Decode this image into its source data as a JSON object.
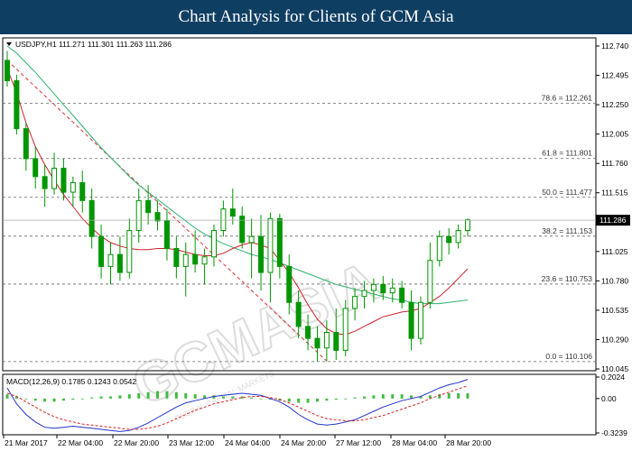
{
  "header": {
    "title": "Chart Analysis for Clients of GCM Asia"
  },
  "symbol_info": "USDJPY,H1  111.271 111.301 111.263 111.286",
  "macd_info": "MACD(12,26,9) 0.1785 0.1243 0.0542",
  "watermark": {
    "main": "GCMASIA",
    "sub": "GLOBAL CAPITAL MARKETS"
  },
  "colors": {
    "header_bg": "#0f3e63",
    "candle": "#009600",
    "ma_fast": "#d0202c",
    "ma_slow": "#2db36a",
    "macd_line": "#2233cc",
    "signal_line": "#dd2222",
    "histogram": "#44bb44"
  },
  "chart_data": {
    "type": "candlestick",
    "symbol": "USDJPY",
    "timeframe": "H1",
    "price_axis": {
      "ticks": [
        "112.740",
        "112.495",
        "112.250",
        "112.005",
        "111.760",
        "111.515",
        "111.270",
        "111.025",
        "110.780",
        "110.535",
        "110.290",
        "110.045"
      ],
      "range": [
        110.045,
        112.74
      ]
    },
    "current_price": "111.286",
    "fibonacci": [
      {
        "label": "78.6 = 112.261",
        "value": 112.261
      },
      {
        "label": "61.8 = 111.801",
        "value": 111.801
      },
      {
        "label": "50.0 = 111.477",
        "value": 111.477
      },
      {
        "label": "38.2 = 111.153",
        "value": 111.153
      },
      {
        "label": "23.6 = 110.753",
        "value": 110.753
      },
      {
        "label": "0.0 = 110.106",
        "value": 110.106
      }
    ],
    "time_labels": [
      "21 Mar 2017",
      "22 Mar 04:00",
      "22 Mar 20:00",
      "23 Mar 12:00",
      "24 Mar 04:00",
      "24 Mar 20:00",
      "27 Mar 12:00",
      "28 Mar 04:00",
      "28 Mar 20:00"
    ],
    "candles": [
      {
        "o": 112.62,
        "h": 112.7,
        "l": 112.4,
        "c": 112.45
      },
      {
        "o": 112.45,
        "h": 112.5,
        "l": 112.0,
        "c": 112.05
      },
      {
        "o": 112.05,
        "h": 112.1,
        "l": 111.7,
        "c": 111.8
      },
      {
        "o": 111.8,
        "h": 111.9,
        "l": 111.55,
        "c": 111.65
      },
      {
        "o": 111.65,
        "h": 111.75,
        "l": 111.4,
        "c": 111.55
      },
      {
        "o": 111.55,
        "h": 111.85,
        "l": 111.5,
        "c": 111.72
      },
      {
        "o": 111.72,
        "h": 111.8,
        "l": 111.45,
        "c": 111.52
      },
      {
        "o": 111.52,
        "h": 111.65,
        "l": 111.4,
        "c": 111.6
      },
      {
        "o": 111.6,
        "h": 111.7,
        "l": 111.35,
        "c": 111.45
      },
      {
        "o": 111.45,
        "h": 111.55,
        "l": 111.05,
        "c": 111.15
      },
      {
        "o": 111.15,
        "h": 111.25,
        "l": 110.8,
        "c": 110.9
      },
      {
        "o": 110.9,
        "h": 111.1,
        "l": 110.75,
        "c": 111.0
      },
      {
        "o": 111.0,
        "h": 111.15,
        "l": 110.78,
        "c": 110.85
      },
      {
        "o": 110.85,
        "h": 111.3,
        "l": 110.8,
        "c": 111.2
      },
      {
        "o": 111.2,
        "h": 111.55,
        "l": 111.1,
        "c": 111.45
      },
      {
        "o": 111.45,
        "h": 111.58,
        "l": 111.25,
        "c": 111.35
      },
      {
        "o": 111.35,
        "h": 111.45,
        "l": 111.2,
        "c": 111.28
      },
      {
        "o": 111.28,
        "h": 111.38,
        "l": 110.95,
        "c": 111.05
      },
      {
        "o": 111.05,
        "h": 111.15,
        "l": 110.8,
        "c": 110.9
      },
      {
        "o": 110.9,
        "h": 111.1,
        "l": 110.65,
        "c": 111.0
      },
      {
        "o": 111.0,
        "h": 111.2,
        "l": 110.85,
        "c": 110.92
      },
      {
        "o": 110.92,
        "h": 111.05,
        "l": 110.75,
        "c": 110.98
      },
      {
        "o": 110.98,
        "h": 111.25,
        "l": 110.9,
        "c": 111.2
      },
      {
        "o": 111.2,
        "h": 111.45,
        "l": 111.15,
        "c": 111.38
      },
      {
        "o": 111.38,
        "h": 111.55,
        "l": 111.25,
        "c": 111.32
      },
      {
        "o": 111.32,
        "h": 111.4,
        "l": 111.05,
        "c": 111.1
      },
      {
        "o": 111.1,
        "h": 111.3,
        "l": 110.8,
        "c": 111.15
      },
      {
        "o": 111.15,
        "h": 111.33,
        "l": 110.7,
        "c": 110.85
      },
      {
        "o": 110.85,
        "h": 111.35,
        "l": 110.6,
        "c": 111.3
      },
      {
        "o": 111.3,
        "h": 111.34,
        "l": 110.8,
        "c": 110.9
      },
      {
        "o": 110.9,
        "h": 111.0,
        "l": 110.5,
        "c": 110.6
      },
      {
        "o": 110.6,
        "h": 110.7,
        "l": 110.3,
        "c": 110.4
      },
      {
        "o": 110.4,
        "h": 110.5,
        "l": 110.2,
        "c": 110.3
      },
      {
        "o": 110.3,
        "h": 110.4,
        "l": 110.11,
        "c": 110.22
      },
      {
        "o": 110.22,
        "h": 110.45,
        "l": 110.11,
        "c": 110.35
      },
      {
        "o": 110.35,
        "h": 110.55,
        "l": 110.12,
        "c": 110.2
      },
      {
        "o": 110.2,
        "h": 110.62,
        "l": 110.15,
        "c": 110.55
      },
      {
        "o": 110.55,
        "h": 110.72,
        "l": 110.45,
        "c": 110.65
      },
      {
        "o": 110.65,
        "h": 110.78,
        "l": 110.55,
        "c": 110.7
      },
      {
        "o": 110.7,
        "h": 110.8,
        "l": 110.6,
        "c": 110.75
      },
      {
        "o": 110.75,
        "h": 110.82,
        "l": 110.62,
        "c": 110.68
      },
      {
        "o": 110.68,
        "h": 110.8,
        "l": 110.6,
        "c": 110.72
      },
      {
        "o": 110.72,
        "h": 110.78,
        "l": 110.55,
        "c": 110.6
      },
      {
        "o": 110.6,
        "h": 110.7,
        "l": 110.2,
        "c": 110.3
      },
      {
        "o": 110.3,
        "h": 110.65,
        "l": 110.25,
        "c": 110.6
      },
      {
        "o": 110.6,
        "h": 111.1,
        "l": 110.55,
        "c": 110.95
      },
      {
        "o": 110.95,
        "h": 111.2,
        "l": 110.9,
        "c": 111.15
      },
      {
        "o": 111.15,
        "h": 111.22,
        "l": 111.0,
        "c": 111.1
      },
      {
        "o": 111.1,
        "h": 111.25,
        "l": 111.05,
        "c": 111.2
      },
      {
        "o": 111.2,
        "h": 111.3,
        "l": 111.15,
        "c": 111.29
      }
    ],
    "ma_fast": [
      112.55,
      112.35,
      112.1,
      111.9,
      111.75,
      111.62,
      111.5,
      111.4,
      111.3,
      111.22,
      111.15,
      111.1,
      111.07,
      111.05,
      111.04,
      111.04,
      111.05,
      111.05,
      111.04,
      111.02,
      111.0,
      110.99,
      110.99,
      111.01,
      111.05,
      111.08,
      111.1,
      111.08,
      111.05,
      110.95,
      110.85,
      110.72,
      110.58,
      110.46,
      110.38,
      110.34,
      110.33,
      110.36,
      110.4,
      110.44,
      110.48,
      110.5,
      110.52,
      110.53,
      110.55,
      110.6,
      110.65,
      110.72,
      110.8,
      110.88
    ],
    "ma_slow": [
      112.74,
      112.68,
      112.6,
      112.52,
      112.43,
      112.34,
      112.25,
      112.16,
      112.07,
      111.98,
      111.89,
      111.81,
      111.73,
      111.65,
      111.58,
      111.52,
      111.46,
      111.4,
      111.34,
      111.28,
      111.22,
      111.17,
      111.13,
      111.09,
      111.06,
      111.03,
      111.0,
      110.98,
      110.96,
      110.93,
      110.9,
      110.87,
      110.84,
      110.81,
      110.78,
      110.75,
      110.73,
      110.71,
      110.69,
      110.67,
      110.65,
      110.63,
      110.62,
      110.6,
      110.59,
      110.59,
      110.59,
      110.6,
      110.61,
      110.62
    ],
    "trend_line": {
      "start": 112.62,
      "end": 110.11
    },
    "macd_axis": {
      "ticks": [
        "0.2024",
        "0.00",
        "-0.3239"
      ],
      "range": [
        -0.3239,
        0.2024
      ]
    },
    "macd": [
      0.1,
      -0.05,
      -0.15,
      -0.22,
      -0.27,
      -0.28,
      -0.27,
      -0.26,
      -0.27,
      -0.28,
      -0.29,
      -0.3,
      -0.31,
      -0.3,
      -0.27,
      -0.23,
      -0.18,
      -0.13,
      -0.08,
      -0.04,
      -0.02,
      0.0,
      0.02,
      0.03,
      0.04,
      0.05,
      0.04,
      0.03,
      0.0,
      -0.03,
      -0.08,
      -0.15,
      -0.2,
      -0.24,
      -0.25,
      -0.24,
      -0.22,
      -0.2,
      -0.16,
      -0.12,
      -0.08,
      -0.05,
      -0.02,
      0.0,
      0.02,
      0.06,
      0.1,
      0.13,
      0.15,
      0.18
    ],
    "signal": [
      0.05,
      0.02,
      -0.03,
      -0.08,
      -0.13,
      -0.17,
      -0.2,
      -0.22,
      -0.24,
      -0.25,
      -0.26,
      -0.27,
      -0.28,
      -0.29,
      -0.29,
      -0.28,
      -0.26,
      -0.23,
      -0.19,
      -0.15,
      -0.11,
      -0.08,
      -0.05,
      -0.03,
      -0.01,
      0.01,
      0.02,
      0.02,
      0.01,
      -0.01,
      -0.04,
      -0.08,
      -0.12,
      -0.16,
      -0.19,
      -0.2,
      -0.21,
      -0.21,
      -0.2,
      -0.18,
      -0.16,
      -0.13,
      -0.1,
      -0.07,
      -0.04,
      0.0,
      0.03,
      0.06,
      0.09,
      0.12
    ],
    "histogram": [
      0.04,
      0.02,
      0.0,
      -0.02,
      -0.03,
      -0.03,
      -0.02,
      -0.01,
      0.0,
      0.01,
      0.02,
      0.02,
      0.03,
      0.04,
      0.05,
      0.06,
      0.07,
      0.07,
      0.06,
      0.05,
      0.04,
      0.03,
      0.03,
      0.02,
      0.02,
      0.02,
      0.01,
      0.0,
      -0.01,
      -0.02,
      -0.03,
      -0.04,
      -0.04,
      -0.03,
      -0.02,
      -0.01,
      0.0,
      0.01,
      0.02,
      0.03,
      0.04,
      0.04,
      0.04,
      0.03,
      0.02,
      0.03,
      0.04,
      0.05,
      0.05,
      0.05
    ]
  }
}
